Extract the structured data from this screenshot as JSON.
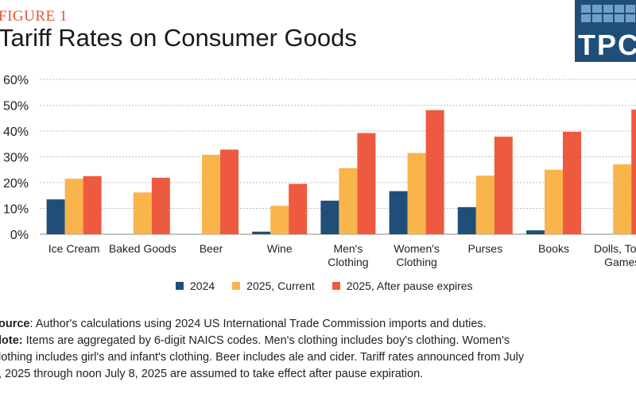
{
  "header": {
    "figure_label": "FIGURE 1",
    "logo_text": "TPC"
  },
  "notes": {
    "source_label": "ource",
    "source_text": ": Author's calculations using 2024 US International Trade Commission imports and duties.",
    "note_label": "lote:",
    "note_line1": " Items are aggregated by 6-digit NAICS codes. Men's clothing includes boy's clothing. Women's",
    "note_line2": "lothing includes girl's and infant's clothing. Beer includes ale and cider. Tariff rates announced from July",
    "note_line3": ", 2025 through noon July 8, 2025 are assumed to take effect after pause expiration."
  },
  "colors": {
    "series": [
      "#1f4e79",
      "#f9b44b",
      "#ee5a3f"
    ],
    "grid": "#bfbfbf"
  },
  "chart_data": {
    "type": "bar",
    "title": "Tariff Rates on Consumer Goods",
    "categories": [
      [
        "Ice Cream"
      ],
      [
        "Baked Goods"
      ],
      [
        "Beer"
      ],
      [
        "Wine"
      ],
      [
        "Men's",
        "Clothing"
      ],
      [
        "Women's",
        "Clothing"
      ],
      [
        "Purses"
      ],
      [
        "Books"
      ],
      [
        "Dolls, Toys,",
        "Games"
      ]
    ],
    "series": [
      {
        "name": "2024",
        "values": [
          13.5,
          0,
          0,
          1,
          13,
          16.7,
          10.5,
          1.5,
          0
        ]
      },
      {
        "name": "2025, Current",
        "values": [
          21.5,
          16.2,
          30.8,
          11,
          25.6,
          31.5,
          22.7,
          25,
          27.1
        ]
      },
      {
        "name": "2025, After pause expires",
        "values": [
          22.5,
          21.9,
          32.8,
          19.5,
          39.2,
          48.1,
          37.8,
          39.7,
          48.3
        ]
      }
    ],
    "yticks": [
      "0%",
      "10%",
      "20%",
      "30%",
      "40%",
      "50%",
      "60%"
    ],
    "ylim": [
      0,
      60
    ],
    "grid": true,
    "legend_position": "bottom"
  }
}
